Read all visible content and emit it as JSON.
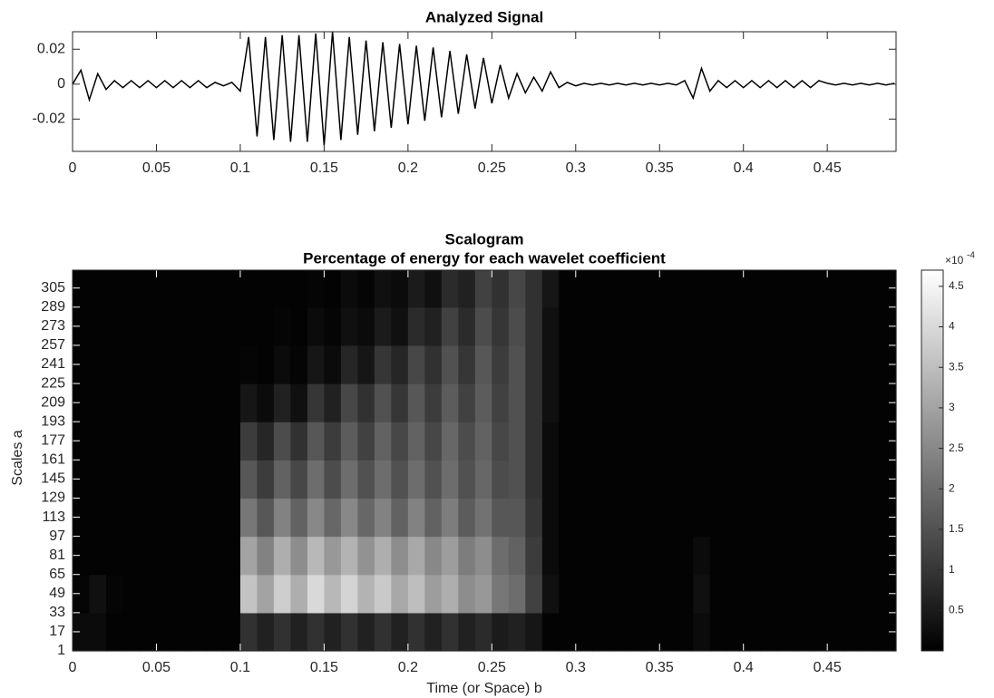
{
  "chart_data": [
    {
      "type": "line",
      "title": "Analyzed Signal",
      "x": [
        0,
        0.005,
        0.01,
        0.015,
        0.02,
        0.025,
        0.03,
        0.035,
        0.04,
        0.045,
        0.05,
        0.055,
        0.06,
        0.065,
        0.07,
        0.075,
        0.08,
        0.085,
        0.09,
        0.095,
        0.1,
        0.105,
        0.11,
        0.115,
        0.12,
        0.125,
        0.13,
        0.135,
        0.14,
        0.145,
        0.15,
        0.155,
        0.16,
        0.165,
        0.17,
        0.175,
        0.18,
        0.185,
        0.19,
        0.195,
        0.2,
        0.205,
        0.21,
        0.215,
        0.22,
        0.225,
        0.23,
        0.235,
        0.24,
        0.245,
        0.25,
        0.255,
        0.26,
        0.265,
        0.27,
        0.275,
        0.28,
        0.285,
        0.29,
        0.295,
        0.3,
        0.305,
        0.31,
        0.315,
        0.32,
        0.325,
        0.33,
        0.335,
        0.34,
        0.345,
        0.35,
        0.355,
        0.36,
        0.365,
        0.37,
        0.375,
        0.38,
        0.385,
        0.39,
        0.395,
        0.4,
        0.405,
        0.41,
        0.415,
        0.42,
        0.425,
        0.43,
        0.435,
        0.44,
        0.445,
        0.45,
        0.455,
        0.46,
        0.465,
        0.47,
        0.475,
        0.48,
        0.485,
        0.49
      ],
      "values": [
        0,
        0.008,
        -0.009,
        0.006,
        -0.003,
        0.002,
        -0.002,
        0.002,
        -0.002,
        0.002,
        -0.002,
        0.002,
        -0.002,
        0.002,
        -0.002,
        0.002,
        -0.002,
        0.001,
        -0.001,
        0.001,
        -0.004,
        0.027,
        -0.03,
        0.027,
        -0.032,
        0.028,
        -0.033,
        0.028,
        -0.033,
        0.029,
        -0.035,
        0.03,
        -0.032,
        0.027,
        -0.029,
        0.025,
        -0.027,
        0.024,
        -0.025,
        0.023,
        -0.023,
        0.022,
        -0.021,
        0.021,
        -0.019,
        0.019,
        -0.017,
        0.017,
        -0.014,
        0.015,
        -0.011,
        0.011,
        -0.008,
        0.006,
        -0.005,
        0.004,
        -0.004,
        0.007,
        -0.002,
        0.001,
        -0.001,
        0.0005,
        -0.0005,
        0.0005,
        -0.0005,
        0.0005,
        -0.0005,
        0.0005,
        -0.0005,
        0.0005,
        -0.0005,
        0.0005,
        -0.0005,
        0.002,
        -0.008,
        0.009,
        -0.004,
        0.002,
        -0.002,
        0.002,
        -0.002,
        0.002,
        -0.002,
        0.002,
        -0.002,
        0.002,
        -0.002,
        0.002,
        -0.002,
        0.002,
        0.0005,
        -0.0005,
        0.0005,
        -0.0005,
        0.0005,
        -0.0005,
        0.0005,
        -0.0005,
        0.0005
      ],
      "color": "#000000",
      "xlim": [
        0,
        0.491
      ],
      "xticks": [
        0,
        0.05,
        0.1,
        0.15,
        0.2,
        0.25,
        0.3,
        0.35,
        0.4,
        0.45
      ],
      "ylim": [
        -0.0385,
        0.03
      ],
      "yticks": [
        -0.02,
        0,
        0.02
      ],
      "grid": false
    },
    {
      "type": "heatmap",
      "title": "Scalogram",
      "subtitle": "Percentage of energy for each wavelet coefficient",
      "xlabel": "Time (or Space) b",
      "ylabel": "Scales a",
      "colormap": "gray",
      "xbins": [
        0,
        0.01,
        0.02,
        0.03,
        0.04,
        0.05,
        0.06,
        0.07,
        0.08,
        0.09,
        0.1,
        0.11,
        0.12,
        0.13,
        0.14,
        0.15,
        0.16,
        0.17,
        0.18,
        0.19,
        0.2,
        0.21,
        0.22,
        0.23,
        0.24,
        0.25,
        0.26,
        0.27,
        0.28,
        0.29,
        0.3,
        0.31,
        0.32,
        0.33,
        0.34,
        0.35,
        0.36,
        0.37,
        0.38,
        0.39,
        0.4,
        0.41,
        0.42,
        0.43,
        0.44,
        0.45,
        0.46,
        0.47,
        0.48,
        0.49,
        0.491
      ],
      "ybins": [
        1,
        33,
        65,
        97,
        129,
        161,
        193,
        225,
        257,
        289,
        320
      ],
      "z": [
        [
          0.2,
          0.2,
          0.05,
          0.05,
          0.05,
          0.05,
          0.05,
          0.05,
          0.05,
          0.05,
          0.9,
          0.6,
          0.9,
          0.6,
          0.9,
          0.6,
          0.9,
          0.6,
          0.9,
          0.6,
          0.9,
          0.6,
          0.9,
          0.6,
          0.8,
          0.5,
          0.6,
          0.4,
          0.05,
          0.05,
          0.05,
          0.05,
          0.05,
          0.05,
          0.05,
          0.05,
          0.05,
          0.2,
          0.05,
          0.05,
          0.05,
          0.05,
          0.05,
          0.05,
          0.05,
          0.05,
          0.05,
          0.05,
          0.05,
          0.05
        ],
        [
          0.1,
          0.3,
          0.1,
          0.05,
          0.05,
          0.05,
          0.05,
          0.05,
          0.05,
          0.05,
          3.6,
          3.0,
          3.8,
          3.2,
          4.0,
          3.4,
          3.9,
          3.3,
          3.7,
          3.1,
          3.5,
          2.9,
          3.2,
          2.6,
          2.8,
          2.2,
          2.0,
          1.2,
          0.3,
          0.05,
          0.05,
          0.05,
          0.05,
          0.05,
          0.05,
          0.05,
          0.05,
          0.3,
          0.05,
          0.05,
          0.05,
          0.05,
          0.05,
          0.05,
          0.05,
          0.05,
          0.05,
          0.05,
          0.05,
          0.05
        ],
        [
          0.05,
          0.05,
          0.05,
          0.05,
          0.05,
          0.05,
          0.05,
          0.05,
          0.05,
          0.05,
          3.0,
          2.4,
          3.2,
          2.6,
          3.4,
          2.8,
          3.3,
          2.7,
          3.2,
          2.6,
          3.1,
          2.5,
          2.9,
          2.3,
          2.6,
          2.0,
          1.8,
          1.1,
          0.2,
          0.05,
          0.05,
          0.05,
          0.05,
          0.05,
          0.05,
          0.05,
          0.05,
          0.2,
          0.05,
          0.05,
          0.05,
          0.05,
          0.05,
          0.05,
          0.05,
          0.05,
          0.05,
          0.05,
          0.05,
          0.05
        ],
        [
          0.05,
          0.05,
          0.05,
          0.05,
          0.05,
          0.05,
          0.05,
          0.05,
          0.05,
          0.05,
          2.2,
          1.6,
          2.4,
          1.8,
          2.5,
          1.9,
          2.5,
          1.9,
          2.4,
          1.8,
          2.4,
          1.8,
          2.3,
          1.7,
          2.1,
          1.6,
          1.6,
          1.0,
          0.2,
          0.05,
          0.05,
          0.05,
          0.05,
          0.05,
          0.05,
          0.05,
          0.05,
          0.05,
          0.05,
          0.05,
          0.05,
          0.05,
          0.05,
          0.05,
          0.05,
          0.05,
          0.05,
          0.05,
          0.05,
          0.05
        ],
        [
          0.05,
          0.05,
          0.05,
          0.05,
          0.05,
          0.05,
          0.05,
          0.05,
          0.05,
          0.05,
          1.6,
          1.1,
          1.8,
          1.3,
          2.0,
          1.4,
          2.0,
          1.5,
          2.0,
          1.5,
          2.0,
          1.5,
          2.0,
          1.5,
          1.9,
          1.4,
          1.5,
          0.9,
          0.2,
          0.05,
          0.05,
          0.05,
          0.05,
          0.05,
          0.05,
          0.05,
          0.05,
          0.05,
          0.05,
          0.05,
          0.05,
          0.05,
          0.05,
          0.05,
          0.05,
          0.05,
          0.05,
          0.05,
          0.05,
          0.05
        ],
        [
          0.05,
          0.05,
          0.05,
          0.05,
          0.05,
          0.05,
          0.05,
          0.05,
          0.05,
          0.05,
          1.1,
          0.7,
          1.4,
          0.9,
          1.6,
          1.1,
          1.7,
          1.2,
          1.8,
          1.3,
          1.8,
          1.3,
          1.9,
          1.4,
          1.8,
          1.3,
          1.5,
          0.9,
          0.2,
          0.05,
          0.05,
          0.05,
          0.05,
          0.05,
          0.05,
          0.05,
          0.05,
          0.05,
          0.05,
          0.05,
          0.05,
          0.05,
          0.05,
          0.05,
          0.05,
          0.05,
          0.05,
          0.05,
          0.05,
          0.05
        ],
        [
          0.05,
          0.05,
          0.05,
          0.05,
          0.05,
          0.05,
          0.05,
          0.05,
          0.05,
          0.05,
          0.4,
          0.2,
          0.6,
          0.3,
          1.0,
          0.6,
          1.3,
          0.9,
          1.5,
          1.0,
          1.6,
          1.1,
          1.7,
          1.2,
          1.7,
          1.2,
          1.5,
          0.9,
          0.3,
          0.05,
          0.05,
          0.05,
          0.05,
          0.05,
          0.05,
          0.05,
          0.05,
          0.05,
          0.05,
          0.05,
          0.05,
          0.05,
          0.05,
          0.05,
          0.05,
          0.05,
          0.05,
          0.05,
          0.05,
          0.05
        ],
        [
          0.05,
          0.05,
          0.05,
          0.05,
          0.05,
          0.05,
          0.05,
          0.05,
          0.05,
          0.05,
          0.1,
          0.05,
          0.2,
          0.1,
          0.4,
          0.2,
          0.7,
          0.4,
          1.0,
          0.7,
          1.3,
          0.9,
          1.5,
          1.0,
          1.6,
          1.1,
          1.5,
          0.9,
          0.3,
          0.05,
          0.05,
          0.05,
          0.05,
          0.05,
          0.05,
          0.05,
          0.05,
          0.05,
          0.05,
          0.05,
          0.05,
          0.05,
          0.05,
          0.05,
          0.05,
          0.05,
          0.05,
          0.05,
          0.05,
          0.05
        ],
        [
          0.05,
          0.05,
          0.05,
          0.05,
          0.05,
          0.05,
          0.05,
          0.05,
          0.05,
          0.05,
          0.05,
          0.05,
          0.1,
          0.05,
          0.2,
          0.1,
          0.3,
          0.2,
          0.5,
          0.3,
          0.8,
          0.6,
          1.2,
          0.8,
          1.4,
          1.0,
          1.4,
          0.9,
          0.3,
          0.05,
          0.05,
          0.05,
          0.05,
          0.05,
          0.05,
          0.05,
          0.05,
          0.05,
          0.05,
          0.05,
          0.05,
          0.05,
          0.05,
          0.05,
          0.05,
          0.05,
          0.05,
          0.05,
          0.05,
          0.05
        ],
        [
          0.05,
          0.05,
          0.05,
          0.05,
          0.05,
          0.05,
          0.05,
          0.05,
          0.05,
          0.05,
          0.05,
          0.05,
          0.05,
          0.05,
          0.1,
          0.05,
          0.2,
          0.1,
          0.3,
          0.2,
          0.5,
          0.3,
          0.8,
          0.6,
          1.2,
          0.9,
          1.3,
          0.9,
          0.4,
          0.05,
          0.05,
          0.05,
          0.05,
          0.05,
          0.05,
          0.05,
          0.05,
          0.05,
          0.05,
          0.05,
          0.05,
          0.05,
          0.05,
          0.05,
          0.05,
          0.05,
          0.05,
          0.05,
          0.05,
          0.05
        ]
      ],
      "xlim": [
        0,
        0.491
      ],
      "xticks": [
        0,
        0.05,
        0.1,
        0.15,
        0.2,
        0.25,
        0.3,
        0.35,
        0.4,
        0.45
      ],
      "ylim": [
        1,
        320
      ],
      "yticks": [
        1,
        17,
        33,
        49,
        65,
        81,
        97,
        113,
        129,
        145,
        161,
        177,
        193,
        209,
        225,
        241,
        257,
        273,
        289,
        305
      ],
      "clim": [
        0,
        4.7
      ],
      "colorbar_ticks": [
        0.5,
        1,
        1.5,
        2,
        2.5,
        3,
        3.5,
        4,
        4.5
      ],
      "colorbar_multiplier": "×10",
      "colorbar_exponent": "-4"
    }
  ]
}
